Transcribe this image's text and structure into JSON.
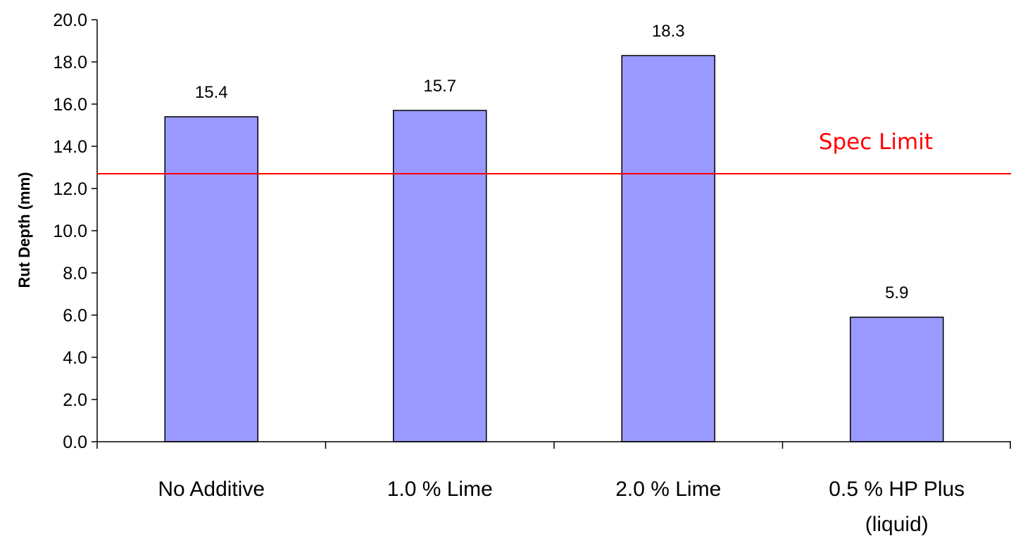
{
  "chart_data": {
    "type": "bar",
    "title": "",
    "xlabel": "",
    "ylabel": "Rut Depth (mm)",
    "categories": [
      [
        "No Additive"
      ],
      [
        "1.0 % Lime"
      ],
      [
        "2.0 % Lime"
      ],
      [
        "0.5 % HP Plus",
        "(liquid)"
      ]
    ],
    "values": [
      15.4,
      15.7,
      18.3,
      5.9
    ],
    "data_labels": [
      "15.4",
      "15.7",
      "18.3",
      "5.9"
    ],
    "ylim": [
      0,
      20
    ],
    "yticks": [
      "0.0",
      "2.0",
      "4.0",
      "6.0",
      "8.0",
      "10.0",
      "12.0",
      "14.0",
      "16.0",
      "18.0",
      "20.0"
    ],
    "reference_line": {
      "label": "Spec Limit",
      "value": 12.7,
      "color": "#ff0000"
    },
    "bar_color": "#9999ff",
    "bar_edge_color": "#000000",
    "grid": false,
    "legend": "none"
  }
}
